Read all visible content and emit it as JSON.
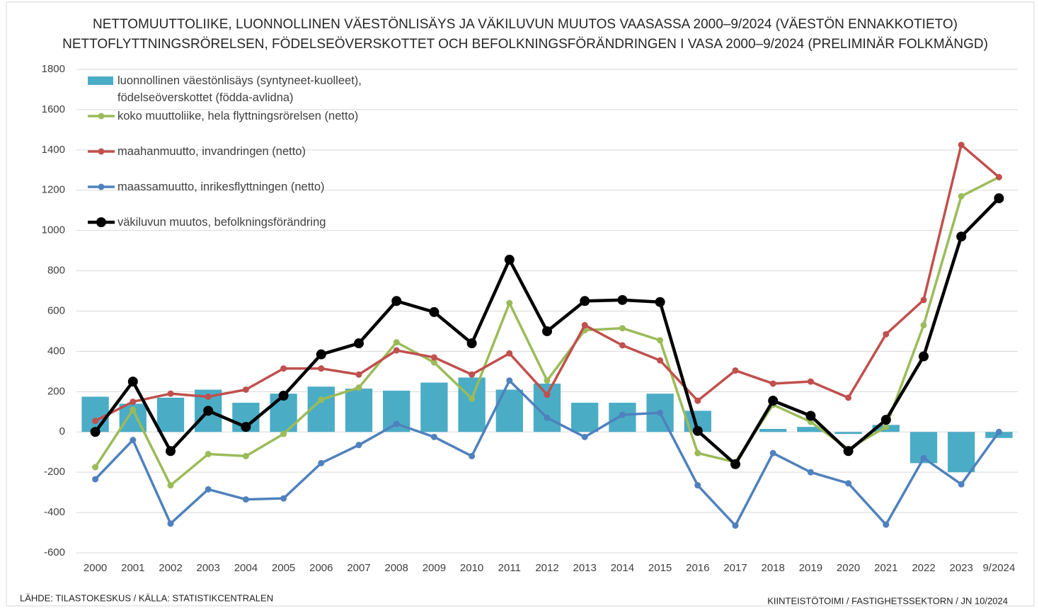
{
  "chart_data": {
    "type": "combo",
    "title": "NETTOMUUTTOLIIKE, LUONNOLLINEN VÄESTÖNLISÄYS JA VÄKILUVUN MUUTOS VAASASSA 2000–9/2024 (VÄESTÖN ENNAKKOTIETO)",
    "subtitle": "NETTOFLYTTNINGSRÖRELSEN, FÖDELSEÖVERSKOTTET OCH BEFOLKNINGSFÖRÄNDRINGEN I VASA 2000–9/2024 (PRELIMINÄR FOLKMÄNGD)",
    "source": "LÄHDE: TILASTOKESKUS / KÄLLA: STATISTIKCENTRALEN",
    "credit": "KIINTEISTÖTOIMI  / FASTIGHETSSEKTORN / JN 10/2024",
    "categories": [
      "2000",
      "2001",
      "2002",
      "2003",
      "2004",
      "2005",
      "2006",
      "2007",
      "2008",
      "2009",
      "2010",
      "2011",
      "2012",
      "2013",
      "2014",
      "2015",
      "2016",
      "2017",
      "2018",
      "2019",
      "2020",
      "2021",
      "2022",
      "2023",
      "9/2024"
    ],
    "ylim": [
      -600,
      1800
    ],
    "yticks": [
      -600,
      -400,
      -200,
      0,
      200,
      400,
      600,
      800,
      1000,
      1200,
      1400,
      1600,
      1800
    ],
    "grid": true,
    "legend": "top-left",
    "series": [
      {
        "name": "luonnollinen väestönlisäys (syntyneet-kuolleet), födelseöverskottet (födda-avlidna)",
        "type": "bar",
        "color": "#4bacc6",
        "values": [
          175,
          140,
          170,
          210,
          145,
          190,
          225,
          215,
          205,
          245,
          270,
          210,
          240,
          145,
          145,
          190,
          105,
          0,
          15,
          25,
          -10,
          35,
          -155,
          -200,
          -30
        ]
      },
      {
        "name": "koko muuttoliike, hela flyttningsrörelsen (netto)",
        "type": "line",
        "color": "#9bbb59",
        "values": [
          -175,
          110,
          -265,
          -110,
          -120,
          -10,
          160,
          220,
          445,
          345,
          165,
          640,
          255,
          505,
          515,
          455,
          -105,
          -150,
          135,
          50,
          -85,
          25,
          530,
          1170,
          1265
        ]
      },
      {
        "name": "maahanmuutto, invandringen (netto)",
        "type": "line",
        "color": "#c0504d",
        "values": [
          55,
          150,
          190,
          175,
          210,
          315,
          315,
          285,
          405,
          370,
          285,
          390,
          185,
          530,
          430,
          355,
          155,
          305,
          240,
          250,
          170,
          485,
          655,
          1425,
          1265
        ]
      },
      {
        "name": "maassamuutto, inrikesflyttningen (netto)",
        "type": "line",
        "color": "#4f81bd",
        "values": [
          -235,
          -40,
          -455,
          -285,
          -335,
          -330,
          -155,
          -65,
          40,
          -25,
          -120,
          255,
          70,
          -25,
          85,
          95,
          -265,
          -465,
          -105,
          -200,
          -255,
          -460,
          -130,
          -260,
          0
        ]
      },
      {
        "name": "väkiluvun muutos, befolkningsförändring",
        "type": "line",
        "color": "#000000",
        "values": [
          0,
          250,
          -95,
          105,
          25,
          180,
          385,
          440,
          650,
          595,
          440,
          855,
          500,
          650,
          655,
          645,
          5,
          -160,
          155,
          80,
          -95,
          60,
          375,
          970,
          1160
        ]
      }
    ]
  }
}
